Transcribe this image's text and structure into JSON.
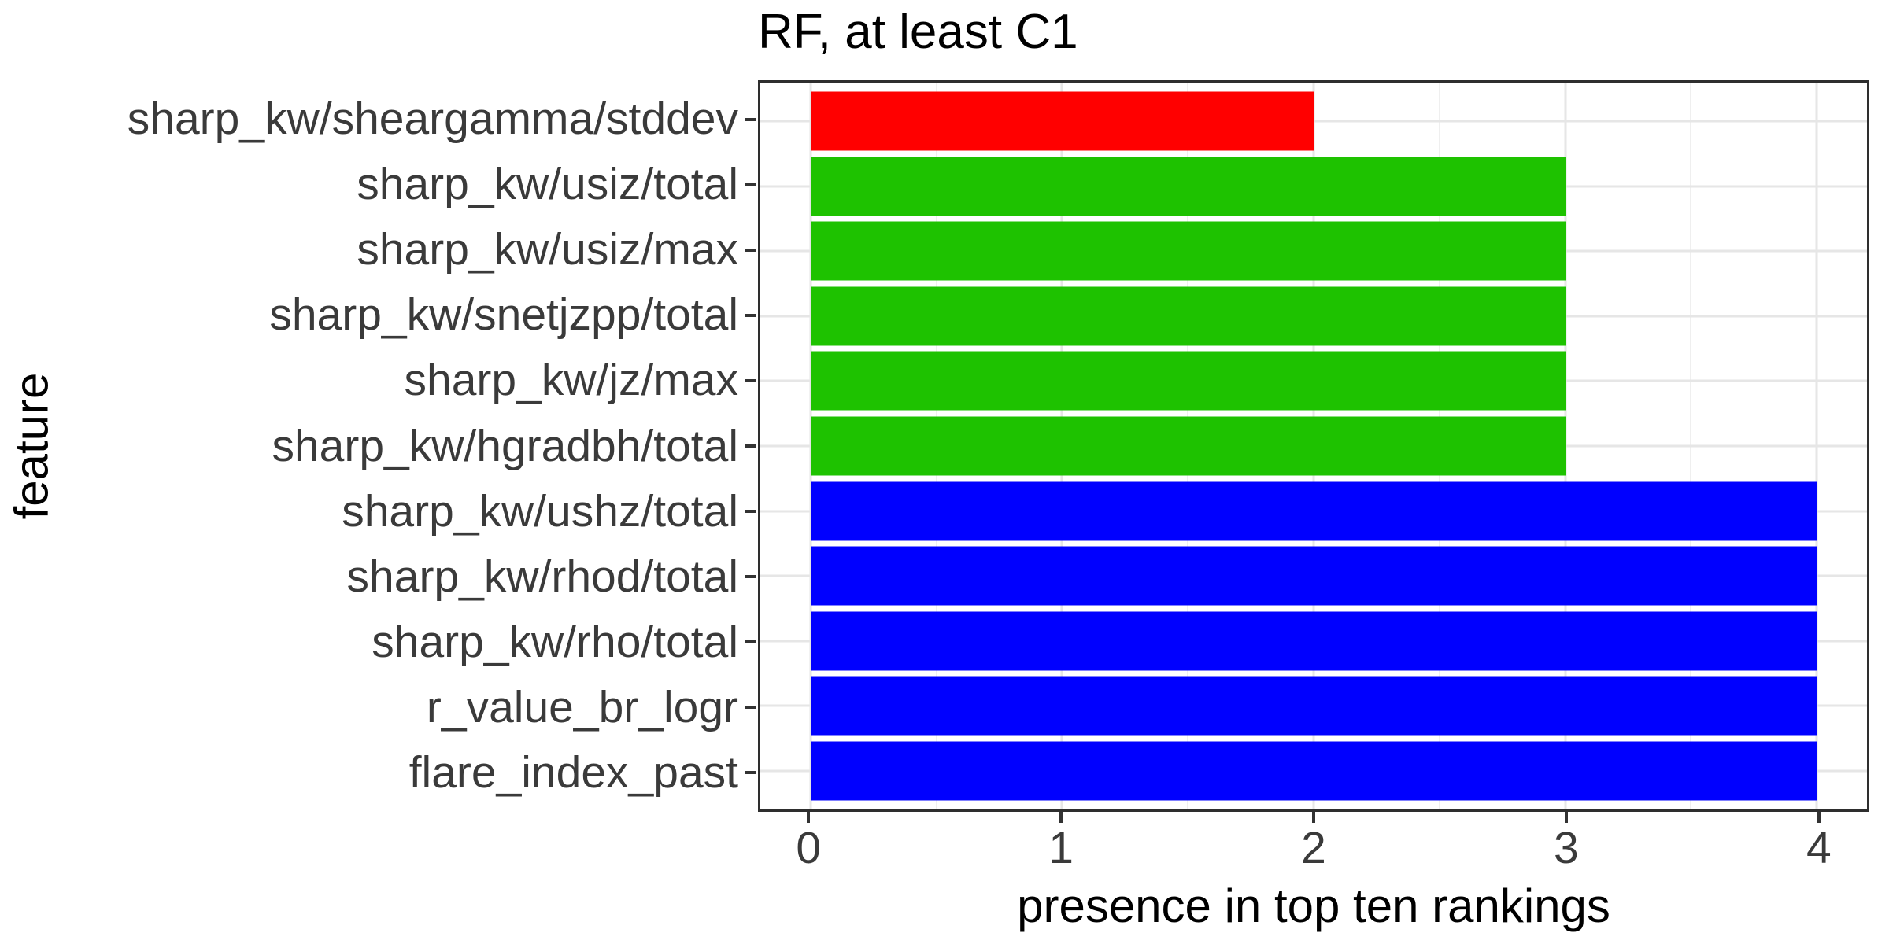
{
  "chart_data": {
    "type": "bar",
    "orientation": "horizontal",
    "title": "RF, at least C1",
    "xlabel": "presence in top ten rankings",
    "ylabel": "feature",
    "xlim": [
      -0.2,
      4.2
    ],
    "x_ticks": [
      0,
      1,
      2,
      3,
      4
    ],
    "x_tick_labels": [
      "0",
      "1",
      "2",
      "3",
      "4"
    ],
    "x_minor_ticks": [
      0.5,
      1.5,
      2.5,
      3.5
    ],
    "grid": true,
    "legend": "none",
    "bar_width_fraction": 0.9,
    "colors": {
      "red": "#ff0000",
      "green": "#1ec200",
      "blue": "#0000ff"
    },
    "categories": [
      {
        "label": "sharp_kw/sheargamma/stddev",
        "value": 2,
        "color": "#ff0000"
      },
      {
        "label": "sharp_kw/usiz/total",
        "value": 3,
        "color": "#1ec200"
      },
      {
        "label": "sharp_kw/usiz/max",
        "value": 3,
        "color": "#1ec200"
      },
      {
        "label": "sharp_kw/snetjzpp/total",
        "value": 3,
        "color": "#1ec200"
      },
      {
        "label": "sharp_kw/jz/max",
        "value": 3,
        "color": "#1ec200"
      },
      {
        "label": "sharp_kw/hgradbh/total",
        "value": 3,
        "color": "#1ec200"
      },
      {
        "label": "sharp_kw/ushz/total",
        "value": 4,
        "color": "#0000ff"
      },
      {
        "label": "sharp_kw/rhod/total",
        "value": 4,
        "color": "#0000ff"
      },
      {
        "label": "sharp_kw/rho/total",
        "value": 4,
        "color": "#0000ff"
      },
      {
        "label": "r_value_br_logr",
        "value": 4,
        "color": "#0000ff"
      },
      {
        "label": "flare_index_past",
        "value": 4,
        "color": "#0000ff"
      }
    ]
  }
}
